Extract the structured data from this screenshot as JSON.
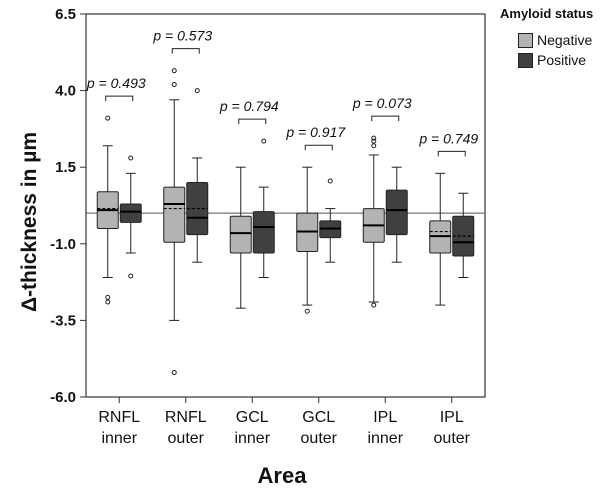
{
  "chart_data": {
    "type": "box",
    "ylabel": "Δ-thickness in µm",
    "xlabel": "Area",
    "ylim": [
      -6.0,
      6.5
    ],
    "yticks": [
      "6.5",
      "4.0",
      "1.5",
      "-1.0",
      "-3.5",
      "-6.0"
    ],
    "yticks_values": [
      6.5,
      4.0,
      1.5,
      -1.0,
      -3.5,
      -6.0
    ],
    "reference_line": 0,
    "legend": {
      "title": "Amyloid status",
      "entries": [
        {
          "name": "Negative",
          "color": "#b3b3b3"
        },
        {
          "name": "Positive",
          "color": "#404040"
        }
      ]
    },
    "categories": [
      {
        "line1": "RNFL",
        "line2": "inner",
        "p": "p = 0.493"
      },
      {
        "line1": "RNFL",
        "line2": "outer",
        "p": "p = 0.573"
      },
      {
        "line1": "GCL",
        "line2": "inner",
        "p": "p = 0.794"
      },
      {
        "line1": "GCL",
        "line2": "outer",
        "p": "p = 0.917"
      },
      {
        "line1": "IPL",
        "line2": "inner",
        "p": "p = 0.073"
      },
      {
        "line1": "IPL",
        "line2": "outer",
        "p": "p = 0.749"
      }
    ],
    "series": [
      {
        "name": "Negative",
        "boxes": [
          {
            "whisker_low": -2.1,
            "q1": -0.5,
            "median": 0.1,
            "mean": 0.15,
            "q3": 0.7,
            "whisker_high": 2.2,
            "outliers": [
              -2.9,
              -2.75,
              3.1
            ]
          },
          {
            "whisker_low": -3.5,
            "q1": -0.95,
            "median": 0.3,
            "mean": 0.15,
            "q3": 0.85,
            "whisker_high": 3.7,
            "outliers": [
              -5.2,
              4.2,
              4.65
            ]
          },
          {
            "whisker_low": -3.1,
            "q1": -1.3,
            "median": -0.65,
            "mean": -0.65,
            "q3": -0.1,
            "whisker_high": 1.5,
            "outliers": []
          },
          {
            "whisker_low": -3.0,
            "q1": -1.25,
            "median": -0.6,
            "mean": -0.6,
            "q3": 0.0,
            "whisker_high": 1.5,
            "outliers": [
              -3.2
            ]
          },
          {
            "whisker_low": -2.9,
            "q1": -0.95,
            "median": -0.4,
            "mean": -0.4,
            "q3": 0.15,
            "whisker_high": 1.9,
            "outliers": [
              -3.0,
              2.2,
              2.35,
              2.45
            ]
          },
          {
            "whisker_low": -3.0,
            "q1": -1.3,
            "median": -0.75,
            "mean": -0.6,
            "q3": -0.25,
            "whisker_high": 1.3,
            "outliers": []
          }
        ]
      },
      {
        "name": "Positive",
        "boxes": [
          {
            "whisker_low": -1.3,
            "q1": -0.3,
            "median": 0.05,
            "mean": 0.05,
            "q3": 0.3,
            "whisker_high": 1.3,
            "outliers": [
              -2.05,
              1.8
            ]
          },
          {
            "whisker_low": -1.6,
            "q1": -0.7,
            "median": -0.15,
            "mean": 0.15,
            "q3": 1.0,
            "whisker_high": 1.8,
            "outliers": [
              4.0
            ]
          },
          {
            "whisker_low": -2.1,
            "q1": -1.3,
            "median": -0.45,
            "mean": -0.45,
            "q3": 0.05,
            "whisker_high": 0.85,
            "outliers": [
              2.35
            ]
          },
          {
            "whisker_low": -1.6,
            "q1": -0.8,
            "median": -0.5,
            "mean": -0.5,
            "q3": -0.25,
            "whisker_high": 0.15,
            "outliers": [
              1.05
            ]
          },
          {
            "whisker_low": -1.6,
            "q1": -0.7,
            "median": 0.1,
            "mean": 0.1,
            "q3": 0.75,
            "whisker_high": 1.5,
            "outliers": []
          },
          {
            "whisker_low": -2.1,
            "q1": -1.4,
            "median": -0.95,
            "mean": -0.75,
            "q3": -0.1,
            "whisker_high": 0.65,
            "outliers": []
          }
        ]
      }
    ]
  }
}
